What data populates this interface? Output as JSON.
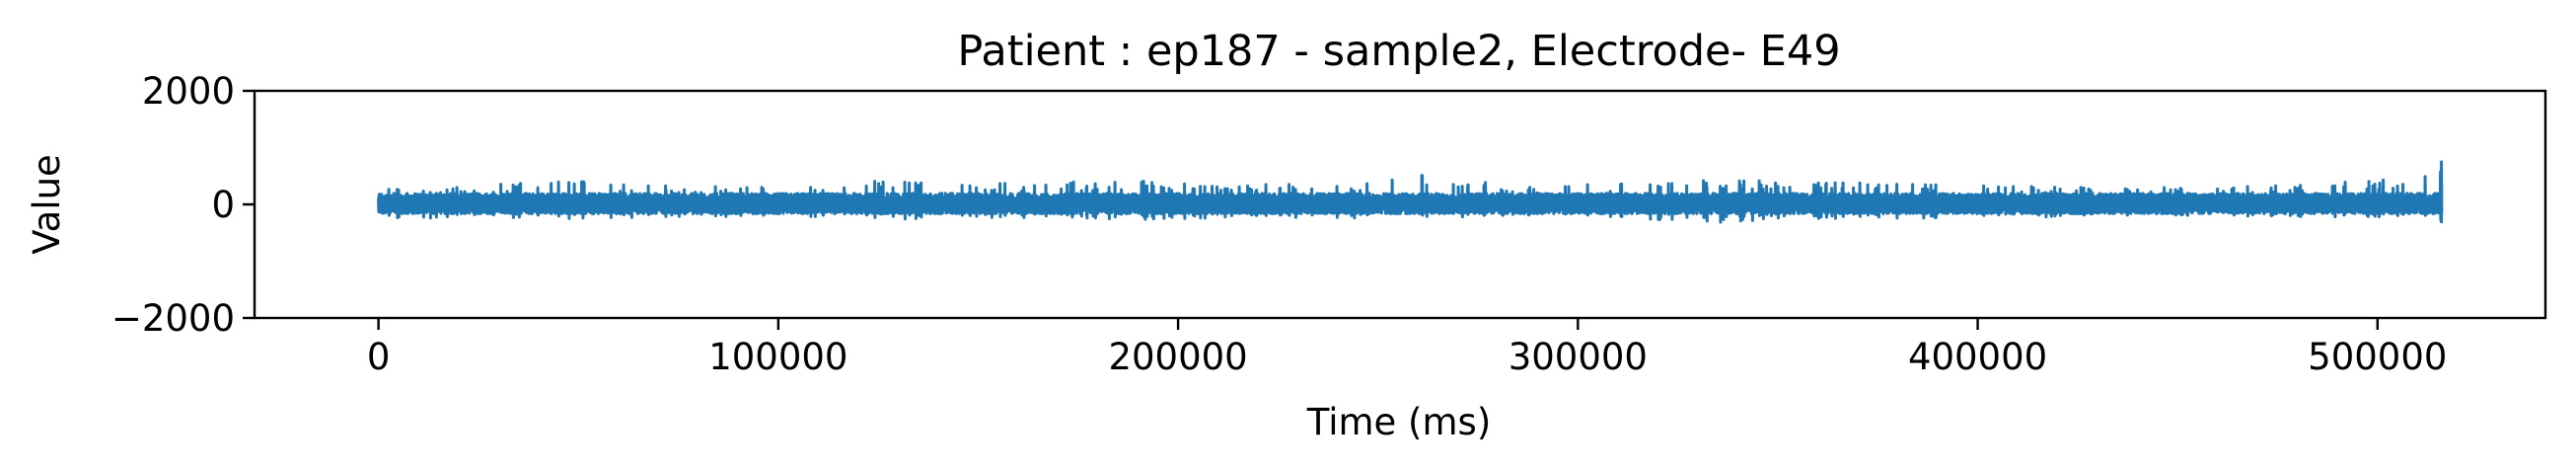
{
  "chart_data": {
    "type": "line",
    "title": "Patient : ep187 - sample2, Electrode- E49",
    "xlabel": "Time (ms)",
    "ylabel": "Value",
    "xlim": [
      -31000,
      542000
    ],
    "ylim": [
      -2000,
      2000
    ],
    "xticks": [
      0,
      100000,
      200000,
      300000,
      400000,
      500000
    ],
    "xtick_labels": [
      "0",
      "100000",
      "200000",
      "300000",
      "400000",
      "500000"
    ],
    "yticks": [
      -2000,
      0,
      2000
    ],
    "ytick_labels": [
      "−2000",
      "0",
      "2000"
    ],
    "grid": false,
    "series": [
      {
        "color": "#1f77b4",
        "x_start": 0,
        "x_end": 516000,
        "baseline": 0,
        "typical_amplitude": 150,
        "max_peak": 750,
        "min_trough": -330,
        "envelope": [
          {
            "x": 0,
            "min": -280,
            "max": 380
          },
          {
            "x": 20000,
            "min": -220,
            "max": 300
          },
          {
            "x": 45000,
            "min": -260,
            "max": 470
          },
          {
            "x": 70000,
            "min": -240,
            "max": 330
          },
          {
            "x": 100000,
            "min": -200,
            "max": 300
          },
          {
            "x": 130000,
            "min": -260,
            "max": 450
          },
          {
            "x": 160000,
            "min": -240,
            "max": 380
          },
          {
            "x": 190000,
            "min": -270,
            "max": 420
          },
          {
            "x": 220000,
            "min": -220,
            "max": 360
          },
          {
            "x": 245000,
            "min": -280,
            "max": 350
          },
          {
            "x": 262000,
            "min": -230,
            "max": 540
          },
          {
            "x": 290000,
            "min": -200,
            "max": 310
          },
          {
            "x": 310000,
            "min": -230,
            "max": 380
          },
          {
            "x": 330000,
            "min": -330,
            "max": 420
          },
          {
            "x": 360000,
            "min": -250,
            "max": 420
          },
          {
            "x": 390000,
            "min": -240,
            "max": 350
          },
          {
            "x": 420000,
            "min": -220,
            "max": 330
          },
          {
            "x": 450000,
            "min": -200,
            "max": 300
          },
          {
            "x": 480000,
            "min": -220,
            "max": 340
          },
          {
            "x": 505000,
            "min": -250,
            "max": 450
          },
          {
            "x": 514000,
            "min": -300,
            "max": 750
          }
        ]
      }
    ]
  }
}
